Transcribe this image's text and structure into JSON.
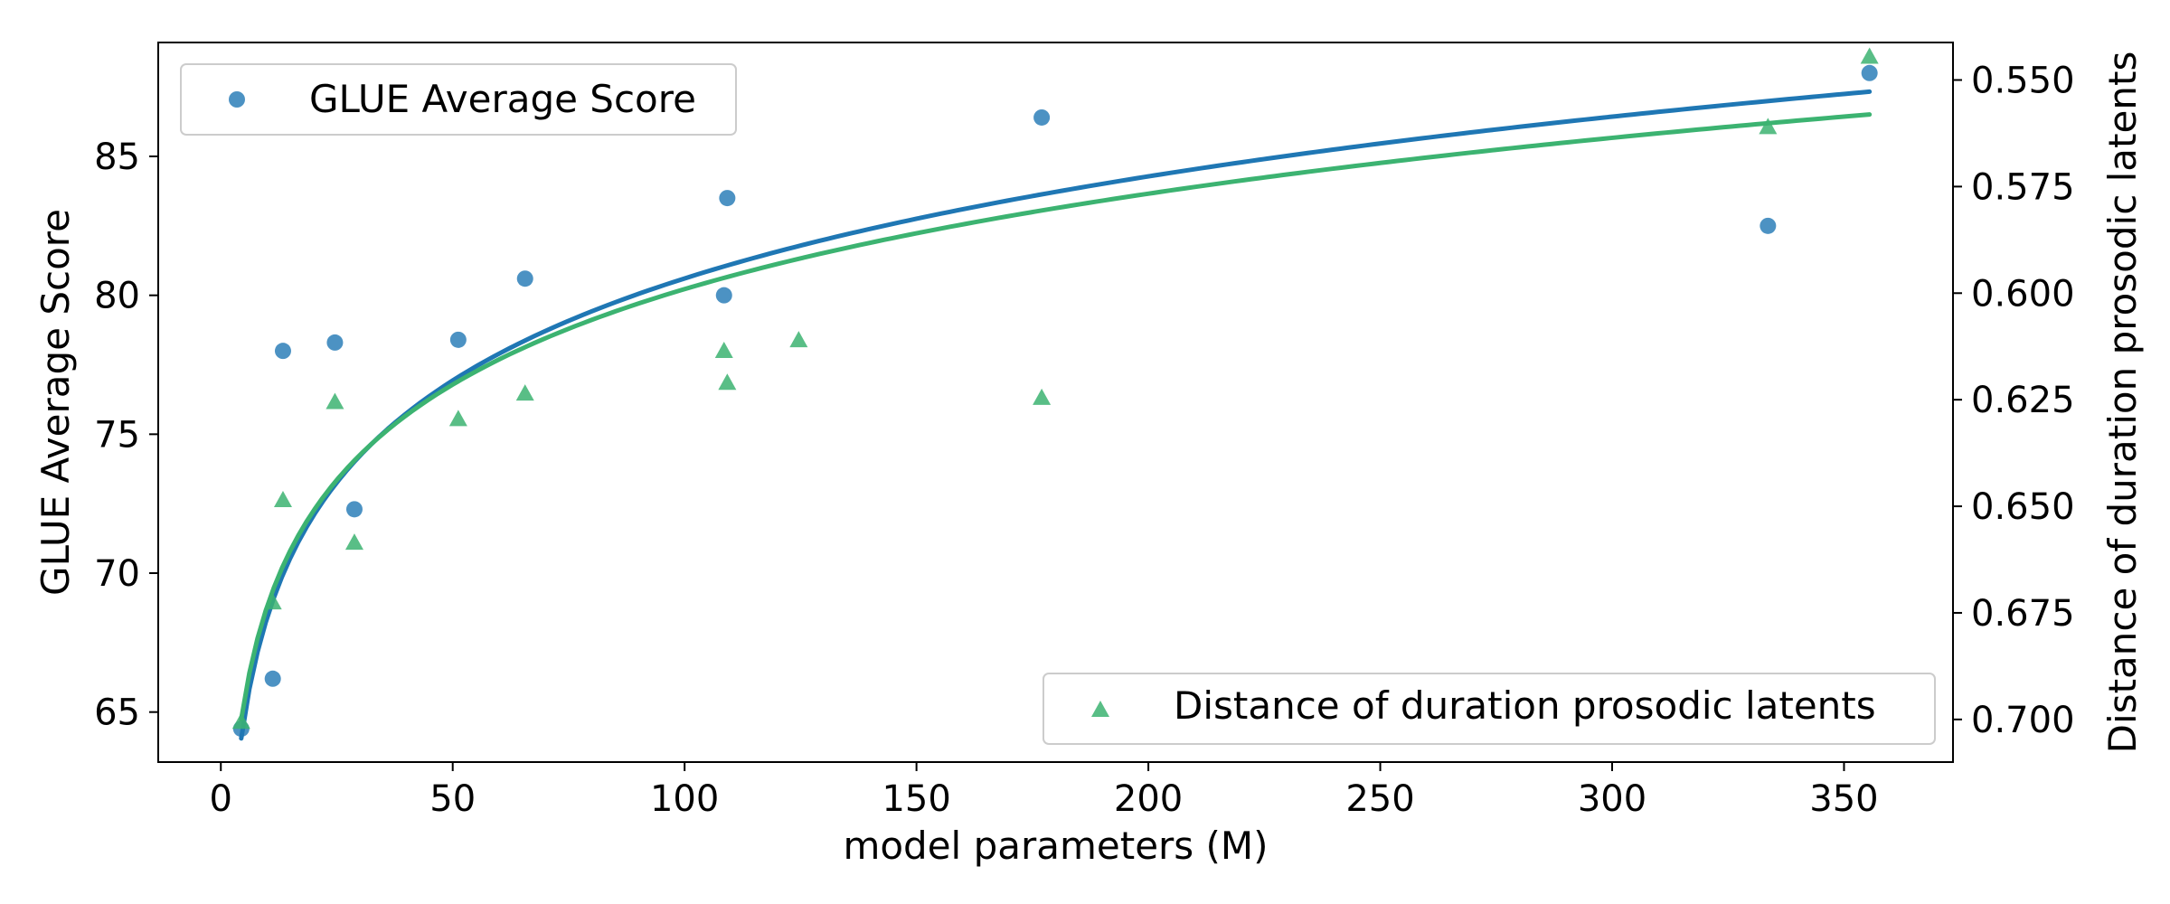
{
  "chart_data": {
    "type": "scatter",
    "title": "",
    "xlabel": "model parameters (M)",
    "ylabel": "GLUE Average Score",
    "y2label": "Distance of duration prosodic latents",
    "xlim": [
      -13.5,
      373.5
    ],
    "ylim": [
      63.2,
      89.1
    ],
    "y2lim": [
      0.71,
      0.5412
    ],
    "y2_inverted": true,
    "x_ticks": [
      0,
      50,
      100,
      150,
      200,
      250,
      300,
      350
    ],
    "y_ticks": [
      65,
      70,
      75,
      80,
      85
    ],
    "y2_ticks": [
      "0.550",
      "0.575",
      "0.600",
      "0.625",
      "0.650",
      "0.675",
      "0.700"
    ],
    "grid": false,
    "series": [
      {
        "name": "GLUE Average Score",
        "axis": "left",
        "marker": "circle",
        "color": "#1f77b4",
        "legend": "upper-left",
        "points": [
          [
            4.4,
            64.4
          ],
          [
            11.2,
            66.2
          ],
          [
            13.4,
            78.0
          ],
          [
            24.6,
            78.3
          ],
          [
            28.8,
            72.3
          ],
          [
            51.2,
            78.4
          ],
          [
            65.6,
            80.6
          ],
          [
            108.5,
            80.0
          ],
          [
            109.2,
            83.5
          ],
          [
            177.0,
            86.4
          ],
          [
            333.6,
            82.5
          ],
          [
            355.5,
            88.0
          ]
        ],
        "fit_curve": {
          "model": "logarithmic",
          "a": 56.2,
          "b": 5.3,
          "x_range": [
            4.4,
            355.5
          ]
        }
      },
      {
        "name": "Distance of duration prosodic latents",
        "axis": "right",
        "marker": "triangle",
        "color": "#3cb371",
        "legend": "lower-right",
        "points": [
          [
            4.4,
            0.7005
          ],
          [
            11.2,
            0.6725
          ],
          [
            13.4,
            0.6485
          ],
          [
            24.6,
            0.6255
          ],
          [
            28.8,
            0.6585
          ],
          [
            51.2,
            0.6295
          ],
          [
            65.6,
            0.6235
          ],
          [
            108.5,
            0.6135
          ],
          [
            109.2,
            0.621
          ],
          [
            124.6,
            0.611
          ],
          [
            177.0,
            0.6245
          ],
          [
            333.6,
            0.561
          ],
          [
            355.5,
            0.5445
          ]
        ],
        "fit_curve": {
          "model": "logarithmic",
          "a": 0.7478,
          "b": -0.0323,
          "x_range": [
            4.4,
            355.5
          ]
        }
      }
    ]
  }
}
